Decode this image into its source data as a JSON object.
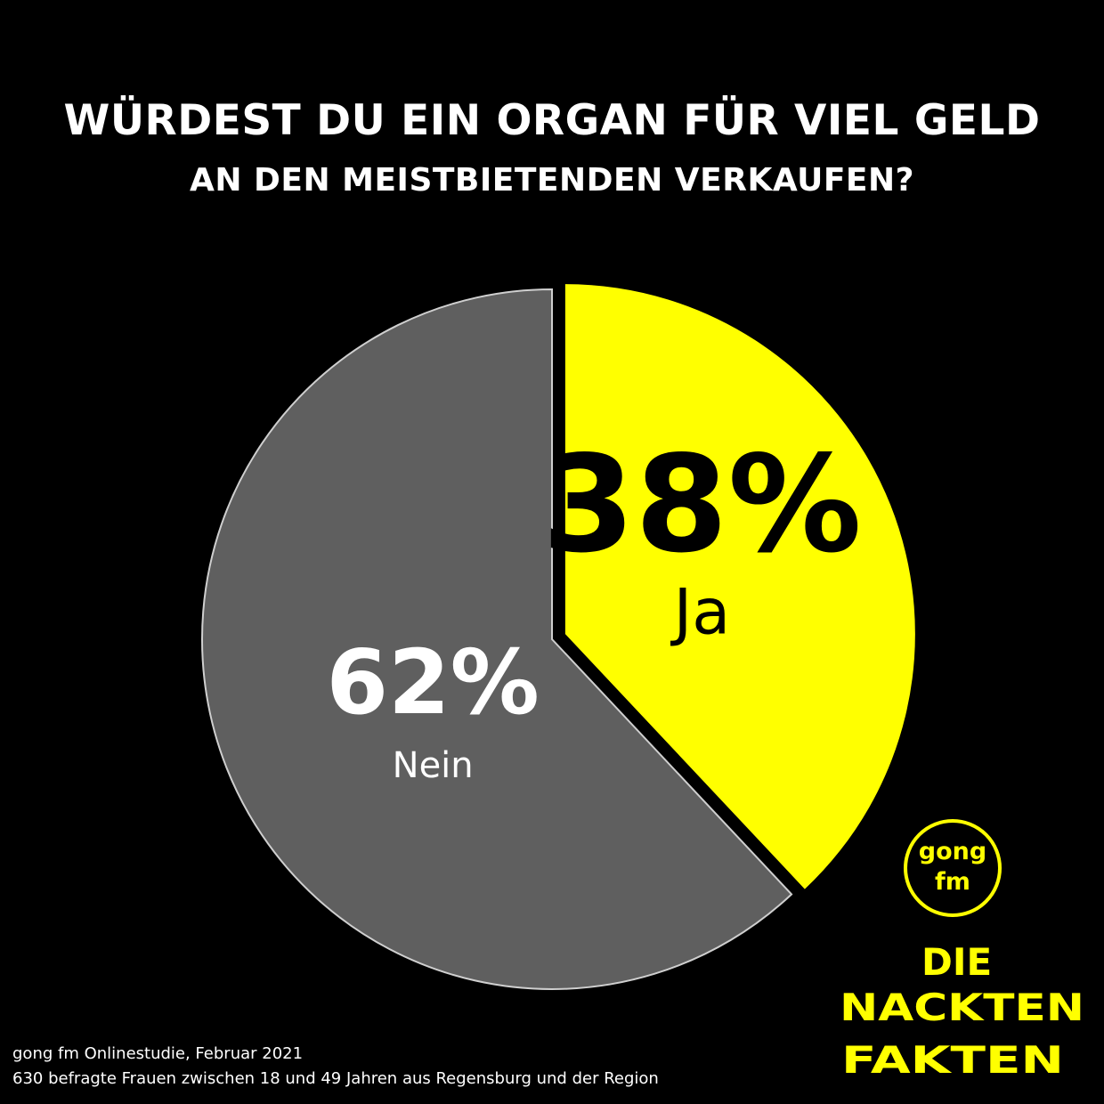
{
  "title": {
    "line1": "WÜRDEST DU EIN ORGAN FÜR VIEL GELD",
    "line2": "AN DEN MEISTBIETENDEN VERKAUFEN?"
  },
  "chart_data": {
    "type": "pie",
    "slices": [
      {
        "label": "Ja",
        "value": 38,
        "display": "38%",
        "color": "#ffff00",
        "label_color": "#000000",
        "exploded": true
      },
      {
        "label": "Nein",
        "value": 62,
        "display": "62%",
        "color": "#5f5f5f",
        "label_color": "#ffffff",
        "exploded": false
      }
    ]
  },
  "logo": {
    "line1": "gong",
    "line2": "fm",
    "brand": [
      "DIE",
      "NACKTEN",
      "FAKTEN"
    ],
    "color": "#ffff00"
  },
  "footer": {
    "line1": "gong fm Onlinestudie, Februar 2021",
    "line2": "630 befragte Frauen zwischen 18 und 49 Jahren aus Regensburg und der Region"
  }
}
